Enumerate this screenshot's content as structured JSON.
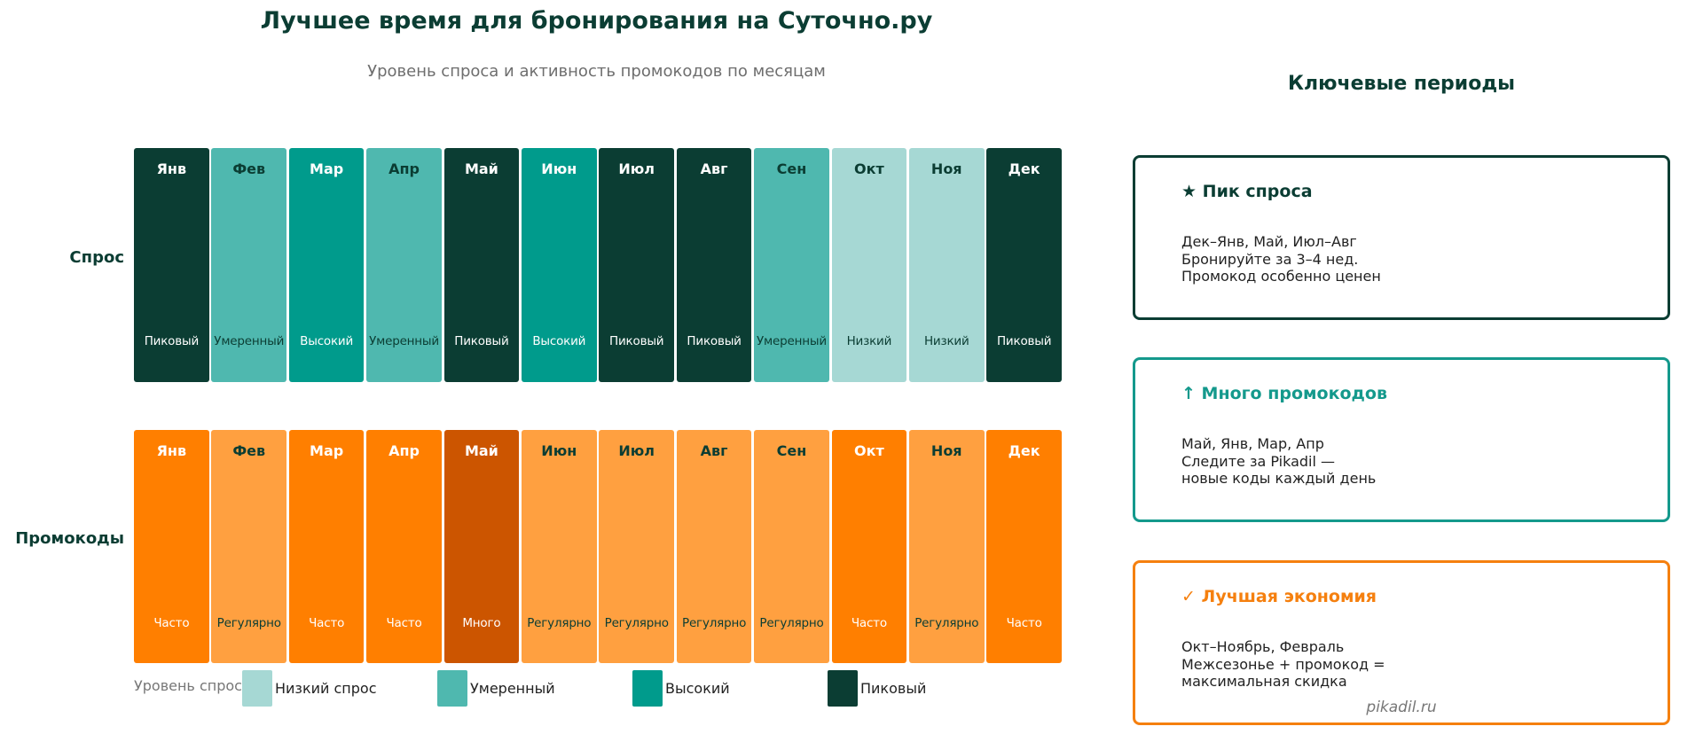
{
  "header": {
    "title": "Лучшее время для бронирования на Суточно.ру",
    "subtitle": "Уровень спроса и активность промокодов по месяцам"
  },
  "rows": {
    "demand_label": "Спрос",
    "promo_label": "Промокоды"
  },
  "colors": {
    "demand": {
      "Низкий": "#a6d8d4",
      "Умеренный": "#4fb8af",
      "Высокий": "#009b8c",
      "Пиковый": "#0b3d33"
    },
    "promo": {
      "Регулярно": "#ffa040",
      "Часто": "#ff7f00",
      "Много": "#cc5500"
    },
    "dark_text": "#0b3d33",
    "teal_accent": "#14998c",
    "orange_accent": "#f5800f"
  },
  "chart_data": {
    "type": "heatmap",
    "title": "Лучшее время для бронирования на Суточно.ру",
    "subtitle": "Уровень спроса и активность промокодов по месяцам",
    "categories": [
      "Янв",
      "Фев",
      "Мар",
      "Апр",
      "Май",
      "Июн",
      "Июл",
      "Авг",
      "Сен",
      "Окт",
      "Ноя",
      "Дек"
    ],
    "series": [
      {
        "name": "Спрос",
        "values": [
          "Пиковый",
          "Умеренный",
          "Высокий",
          "Умеренный",
          "Пиковый",
          "Высокий",
          "Пиковый",
          "Пиковый",
          "Умеренный",
          "Низкий",
          "Низкий",
          "Пиковый"
        ]
      },
      {
        "name": "Промокоды",
        "values": [
          "Часто",
          "Регулярно",
          "Часто",
          "Часто",
          "Много",
          "Регулярно",
          "Регулярно",
          "Регулярно",
          "Регулярно",
          "Часто",
          "Регулярно",
          "Часто"
        ]
      }
    ],
    "legend": {
      "title": "Уровень спроса:",
      "entries": [
        "Низкий спрос",
        "Умеренный",
        "Высокий",
        "Пиковый"
      ],
      "position": "bottom"
    }
  },
  "demand_cells": [
    {
      "month": "Янв",
      "level": "Пиковый",
      "bg": "#0b3d33",
      "fg": "#ffffff"
    },
    {
      "month": "Фев",
      "level": "Умеренный",
      "bg": "#4fb8af",
      "fg": "#0b3d33"
    },
    {
      "month": "Мар",
      "level": "Высокий",
      "bg": "#009b8c",
      "fg": "#ffffff"
    },
    {
      "month": "Апр",
      "level": "Умеренный",
      "bg": "#4fb8af",
      "fg": "#0b3d33"
    },
    {
      "month": "Май",
      "level": "Пиковый",
      "bg": "#0b3d33",
      "fg": "#ffffff"
    },
    {
      "month": "Июн",
      "level": "Высокий",
      "bg": "#009b8c",
      "fg": "#ffffff"
    },
    {
      "month": "Июл",
      "level": "Пиковый",
      "bg": "#0b3d33",
      "fg": "#ffffff"
    },
    {
      "month": "Авг",
      "level": "Пиковый",
      "bg": "#0b3d33",
      "fg": "#ffffff"
    },
    {
      "month": "Сен",
      "level": "Умеренный",
      "bg": "#4fb8af",
      "fg": "#0b3d33"
    },
    {
      "month": "Окт",
      "level": "Низкий",
      "bg": "#a6d8d4",
      "fg": "#0b3d33"
    },
    {
      "month": "Ноя",
      "level": "Низкий",
      "bg": "#a6d8d4",
      "fg": "#0b3d33"
    },
    {
      "month": "Дек",
      "level": "Пиковый",
      "bg": "#0b3d33",
      "fg": "#ffffff"
    }
  ],
  "promo_cells": [
    {
      "month": "Янв",
      "level": "Часто",
      "bg": "#ff7f00",
      "fg": "#ffffff"
    },
    {
      "month": "Фев",
      "level": "Регулярно",
      "bg": "#ffa040",
      "fg": "#0b3d33"
    },
    {
      "month": "Мар",
      "level": "Часто",
      "bg": "#ff7f00",
      "fg": "#ffffff"
    },
    {
      "month": "Апр",
      "level": "Часто",
      "bg": "#ff7f00",
      "fg": "#ffffff"
    },
    {
      "month": "Май",
      "level": "Много",
      "bg": "#cc5500",
      "fg": "#ffffff"
    },
    {
      "month": "Июн",
      "level": "Регулярно",
      "bg": "#ffa040",
      "fg": "#0b3d33"
    },
    {
      "month": "Июл",
      "level": "Регулярно",
      "bg": "#ffa040",
      "fg": "#0b3d33"
    },
    {
      "month": "Авг",
      "level": "Регулярно",
      "bg": "#ffa040",
      "fg": "#0b3d33"
    },
    {
      "month": "Сен",
      "level": "Регулярно",
      "bg": "#ffa040",
      "fg": "#0b3d33"
    },
    {
      "month": "Окт",
      "level": "Часто",
      "bg": "#ff7f00",
      "fg": "#ffffff"
    },
    {
      "month": "Ноя",
      "level": "Регулярно",
      "bg": "#ffa040",
      "fg": "#0b3d33"
    },
    {
      "month": "Дек",
      "level": "Часто",
      "bg": "#ff7f00",
      "fg": "#ffffff"
    }
  ],
  "legend": {
    "title": "Уровень спроса:",
    "items": [
      {
        "label": "Низкий спрос",
        "color": "#a6d8d4"
      },
      {
        "label": "Умеренный",
        "color": "#4fb8af"
      },
      {
        "label": "Высокий",
        "color": "#009b8c"
      },
      {
        "label": "Пиковый",
        "color": "#0b3d33"
      }
    ]
  },
  "sidebar": {
    "heading": "Ключевые периоды",
    "cards": [
      {
        "icon": "★",
        "title": "Пик спроса",
        "color": "#0b3d33",
        "lines": [
          "Дек–Янв, Май, Июл–Авг",
          "Бронируйте за 3–4 нед.",
          "Промокод особенно ценен"
        ]
      },
      {
        "icon": "↑",
        "title": "Много промокодов",
        "color": "#14998c",
        "lines": [
          "Май, Янв, Мар, Апр",
          "Следите за Pikadil —",
          "новые коды каждый день"
        ]
      },
      {
        "icon": "✓",
        "title": "Лучшая экономия",
        "color": "#f5800f",
        "lines": [
          "Окт–Ноябрь, Февраль",
          "Межсезонье + промокод =",
          "максимальная скидка"
        ]
      }
    ],
    "footer": "pikadil.ru"
  }
}
